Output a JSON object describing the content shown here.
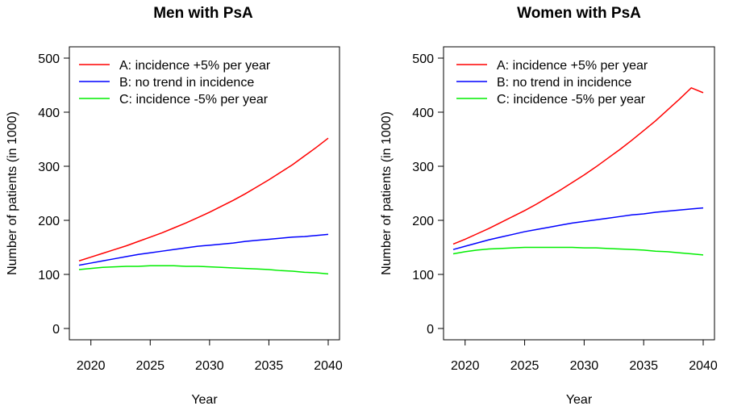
{
  "chart_data": [
    {
      "type": "line",
      "title": "Men with PsA",
      "xlabel": "Year",
      "ylabel": "Number of patients (in 1000)",
      "xlim": [
        2019,
        2040
      ],
      "ylim": [
        0,
        500
      ],
      "xticks": [
        2020,
        2025,
        2030,
        2035,
        2040
      ],
      "yticks": [
        0,
        100,
        200,
        300,
        400,
        500
      ],
      "legend_position": "top-left",
      "x": [
        2019,
        2020,
        2021,
        2022,
        2023,
        2024,
        2025,
        2026,
        2027,
        2028,
        2029,
        2030,
        2031,
        2032,
        2033,
        2034,
        2035,
        2036,
        2037,
        2038,
        2039,
        2040
      ],
      "series": [
        {
          "name": "A: incidence +5% per year",
          "color": "#ff0000",
          "values": [
            125,
            132,
            139,
            146,
            153,
            161,
            169,
            177,
            186,
            195,
            205,
            215,
            226,
            237,
            249,
            262,
            275,
            289,
            303,
            319,
            335,
            352
          ]
        },
        {
          "name": "B: no trend in incidence",
          "color": "#0000ff",
          "values": [
            117,
            121,
            125,
            129,
            133,
            137,
            140,
            143,
            146,
            149,
            152,
            154,
            156,
            158,
            161,
            163,
            165,
            167,
            169,
            170,
            172,
            174
          ]
        },
        {
          "name": "C: incidence -5% per year",
          "color": "#00ee00",
          "values": [
            109,
            111,
            113,
            114,
            115,
            115,
            116,
            116,
            116,
            115,
            115,
            114,
            113,
            112,
            111,
            110,
            109,
            107,
            106,
            104,
            103,
            101
          ]
        }
      ]
    },
    {
      "type": "line",
      "title": "Women with PsA",
      "xlabel": "Year",
      "ylabel": "Number of patients (in 1000)",
      "xlim": [
        2019,
        2040
      ],
      "ylim": [
        0,
        500
      ],
      "xticks": [
        2020,
        2025,
        2030,
        2035,
        2040
      ],
      "yticks": [
        0,
        100,
        200,
        300,
        400,
        500
      ],
      "legend_position": "top-left",
      "x": [
        2019,
        2020,
        2021,
        2022,
        2023,
        2024,
        2025,
        2026,
        2027,
        2028,
        2029,
        2030,
        2031,
        2032,
        2033,
        2034,
        2035,
        2036,
        2037,
        2038,
        2039,
        2040
      ],
      "series": [
        {
          "name": "A: incidence +5% per year",
          "color": "#ff0000",
          "values": [
            156,
            165,
            175,
            185,
            196,
            207,
            218,
            230,
            243,
            256,
            270,
            284,
            299,
            315,
            331,
            348,
            366,
            384,
            404,
            424,
            445,
            436
          ]
        },
        {
          "name": "B: no trend in incidence",
          "color": "#0000ff",
          "values": [
            146,
            152,
            158,
            164,
            169,
            174,
            179,
            183,
            187,
            191,
            195,
            198,
            201,
            204,
            207,
            210,
            212,
            215,
            217,
            219,
            221,
            223
          ]
        },
        {
          "name": "C: incidence -5% per year",
          "color": "#00ee00",
          "values": [
            138,
            142,
            145,
            147,
            148,
            149,
            150,
            150,
            150,
            150,
            150,
            149,
            149,
            148,
            147,
            146,
            145,
            143,
            142,
            140,
            138,
            136
          ]
        }
      ]
    }
  ]
}
